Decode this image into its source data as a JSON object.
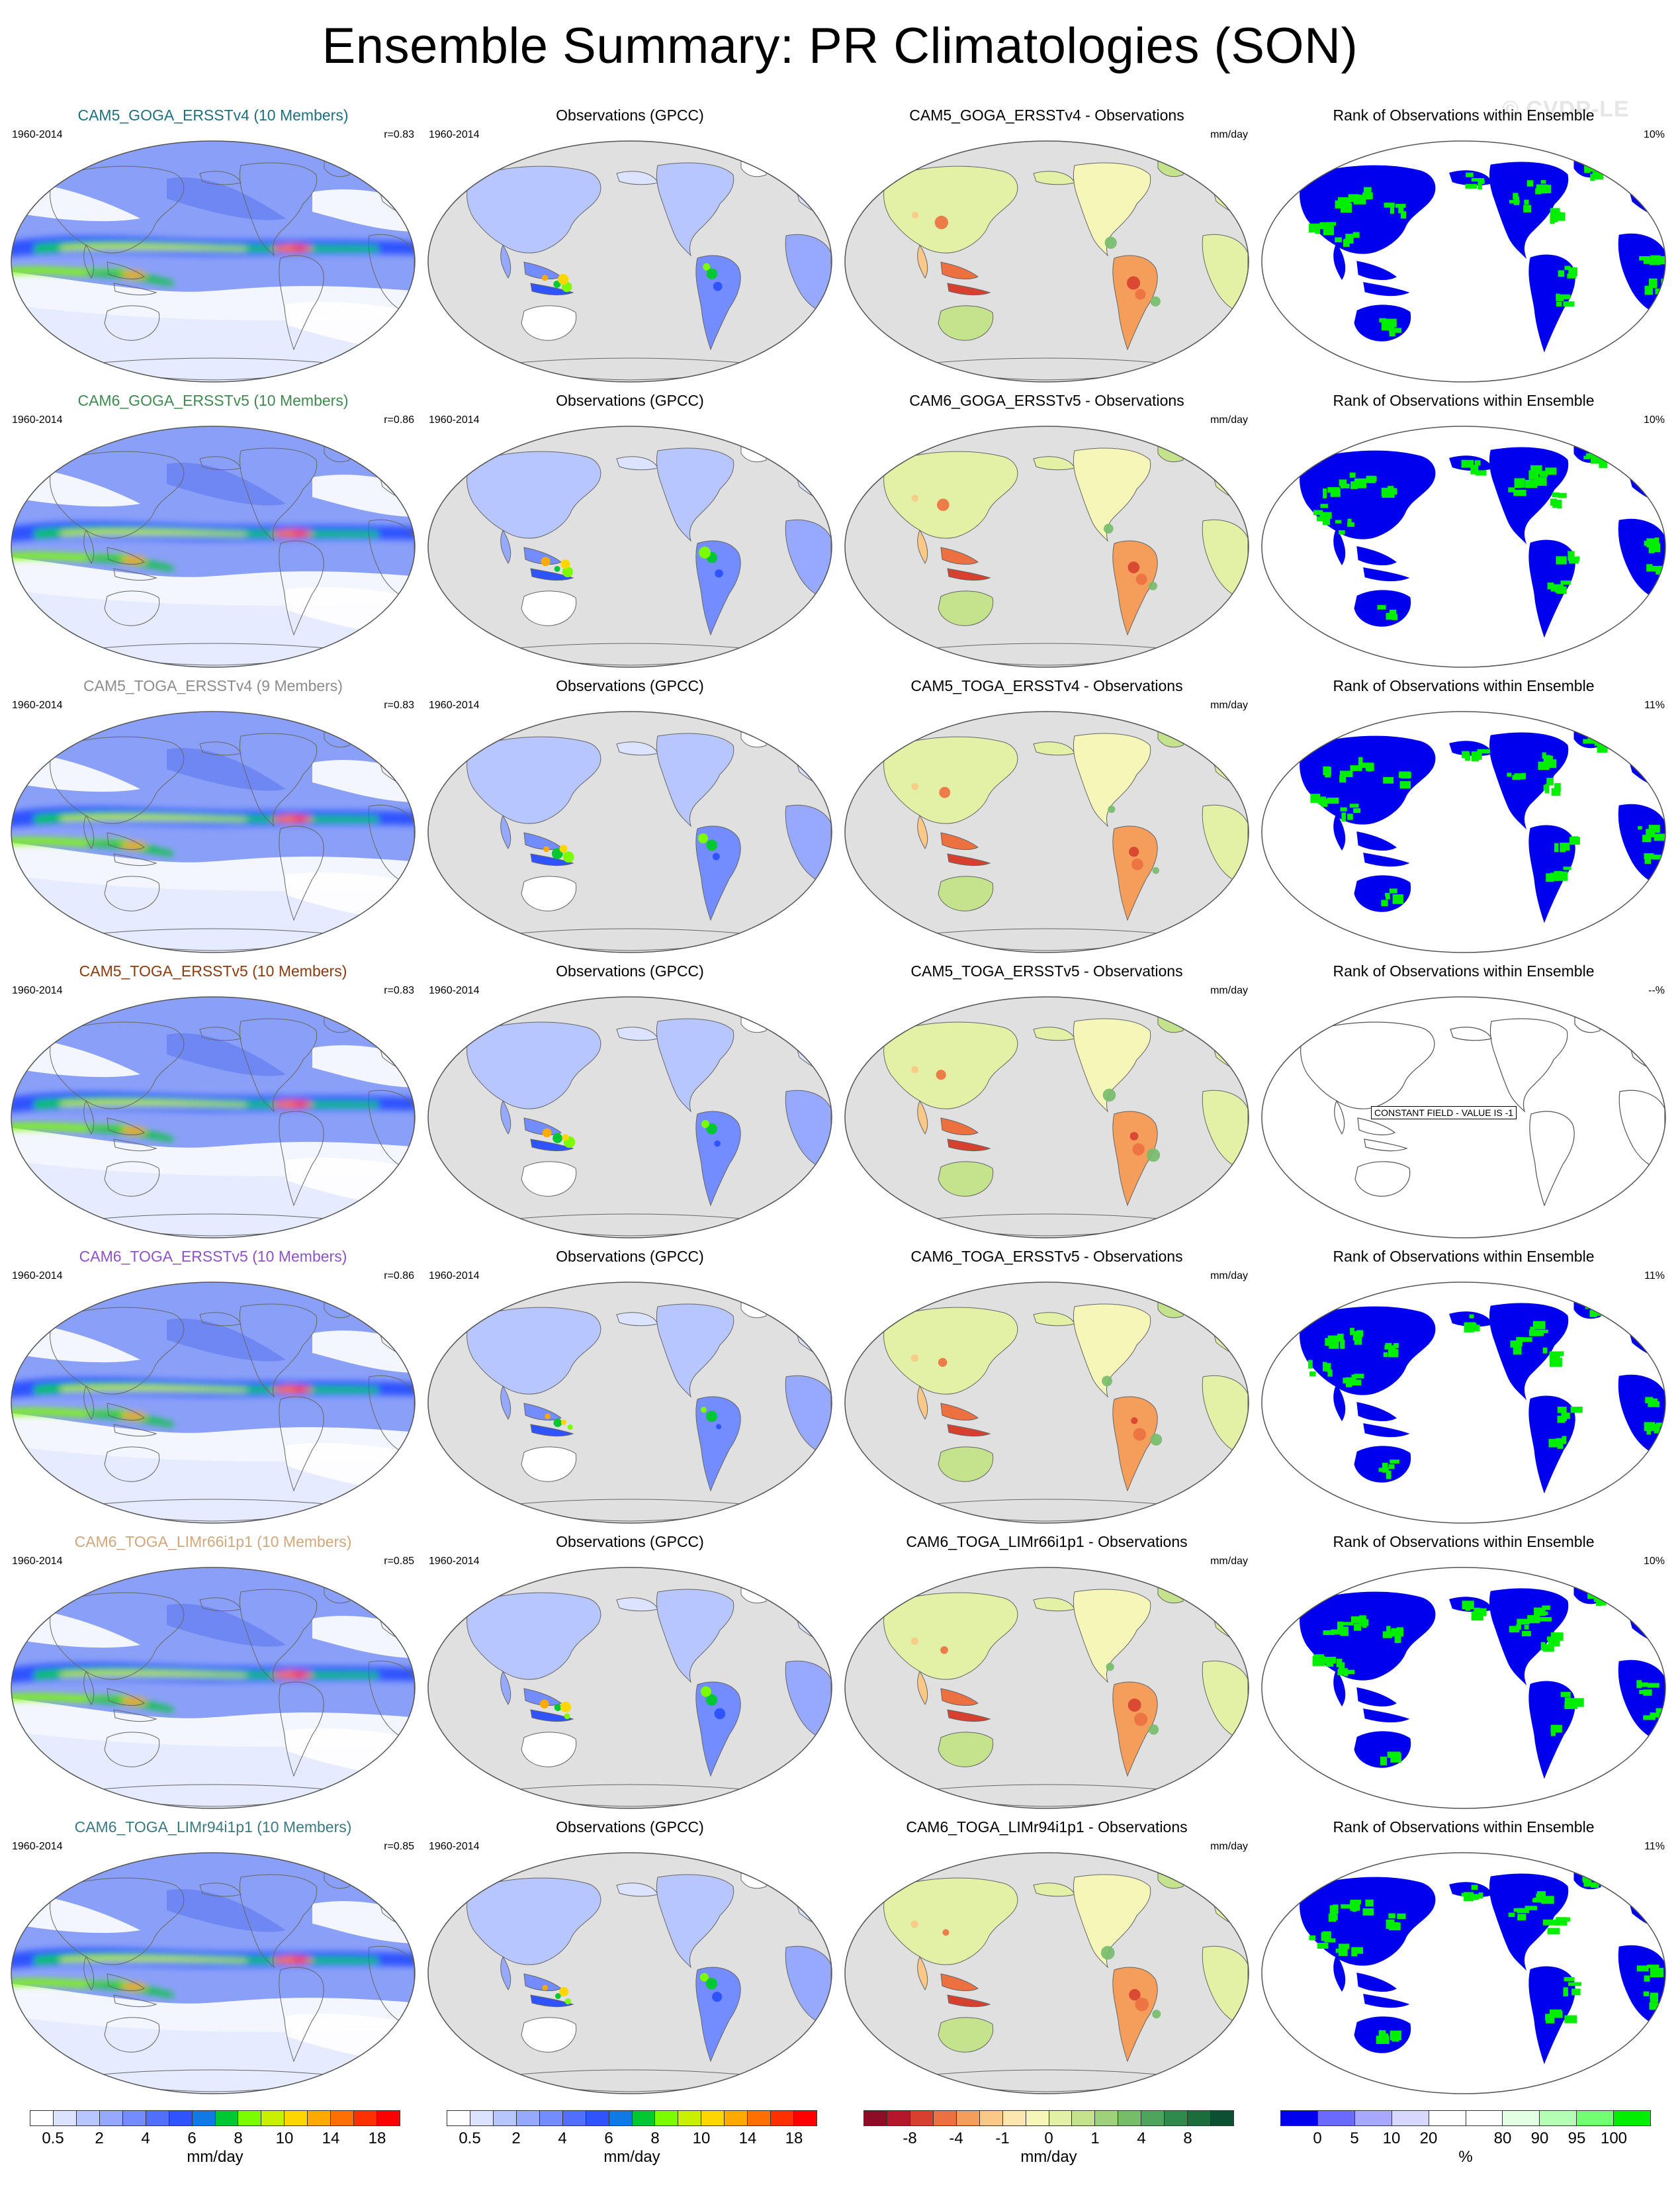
{
  "title": "Ensemble Summary: PR Climatologies (SON)",
  "watermark": "© CVDP-LE",
  "colors": {
    "land": "#e0e0e0",
    "ocean_blank": "#ffffff",
    "rank_low": "#0000ee",
    "rank_high": "#00ee00",
    "coast": "#555555"
  },
  "rows": [
    {
      "model": "CAM5_GOGA_ERSSTv4 (10 Members)",
      "model_color": "#1f6f82",
      "years": "1960-2014",
      "r": "r=0.83",
      "diff_title": "CAM5_GOGA_ERSSTv4 - Observations",
      "rank_pct": "10%"
    },
    {
      "model": "CAM6_GOGA_ERSSTv5 (10 Members)",
      "model_color": "#3f8a4f",
      "years": "1960-2014",
      "r": "r=0.86",
      "diff_title": "CAM6_GOGA_ERSSTv5 - Observations",
      "rank_pct": "10%"
    },
    {
      "model": "CAM5_TOGA_ERSSTv4 (9 Members)",
      "model_color": "#8c8c8c",
      "years": "1960-2014",
      "r": "r=0.83",
      "diff_title": "CAM5_TOGA_ERSSTv4 - Observations",
      "rank_pct": "11%"
    },
    {
      "model": "CAM5_TOGA_ERSSTv5 (10 Members)",
      "model_color": "#8b3a0e",
      "years": "1960-2014",
      "r": "r=0.83",
      "diff_title": "CAM5_TOGA_ERSSTv5 - Observations",
      "rank_pct": "--%"
    },
    {
      "model": "CAM6_TOGA_ERSSTv5 (10 Members)",
      "model_color": "#8e52c8",
      "years": "1960-2014",
      "r": "r=0.86",
      "diff_title": "CAM6_TOGA_ERSSTv5 - Observations",
      "rank_pct": "11%"
    },
    {
      "model": "CAM6_TOGA_LIMr66i1p1 (10 Members)",
      "model_color": "#d2a77a",
      "years": "1960-2014",
      "r": "r=0.85",
      "diff_title": "CAM6_TOGA_LIMr66i1p1 - Observations",
      "rank_pct": "10%"
    },
    {
      "model": "CAM6_TOGA_LIMr94i1p1 (10 Members)",
      "model_color": "#3a7a80",
      "years": "1960-2014",
      "r": "r=0.85",
      "diff_title": "CAM6_TOGA_LIMr94i1p1 - Observations",
      "rank_pct": "11%"
    }
  ],
  "obs_title": "Observations (GPCC)",
  "obs_years": "1960-2014",
  "diff_unit": "mm/day",
  "rank_title": "Rank of Observations within Ensemble",
  "constant_field_label": "CONSTANT FIELD - VALUE IS -1",
  "legends": {
    "precip": {
      "unit": "mm/day",
      "colors": [
        "#ffffff",
        "#dbe3ff",
        "#b8c6ff",
        "#96a9ff",
        "#738cff",
        "#5170ff",
        "#2e53ff",
        "#0f7ae6",
        "#00c832",
        "#7cfc00",
        "#c8f000",
        "#ffd700",
        "#ffaa00",
        "#ff7000",
        "#ff3000",
        "#ff0000"
      ],
      "labels": [
        "0.5",
        "2",
        "4",
        "6",
        "8",
        "10",
        "14",
        "18"
      ]
    },
    "diff": {
      "unit": "mm/day",
      "colors": [
        "#8c0d25",
        "#b5162c",
        "#d7402e",
        "#ec7040",
        "#f59e5c",
        "#fbc887",
        "#fce7ae",
        "#f6f6b8",
        "#e3f1a6",
        "#c4e38c",
        "#9fd07b",
        "#76bd6a",
        "#4ea45c",
        "#2e8a4c",
        "#1b6e3c",
        "#0b5030"
      ],
      "labels": [
        "-8",
        "-4",
        "-1",
        "0",
        "1",
        "4",
        "8"
      ]
    },
    "rank": {
      "unit": "%",
      "colors": [
        "#0000ee",
        "#6a6aff",
        "#a8a8ff",
        "#d8d8ff",
        "#ffffff",
        "#ffffff",
        "#e4ffe4",
        "#b4ffb4",
        "#72ff72",
        "#00ee00"
      ],
      "labels": [
        "0",
        "5",
        "10",
        "20",
        "80",
        "90",
        "95",
        "100"
      ]
    }
  }
}
